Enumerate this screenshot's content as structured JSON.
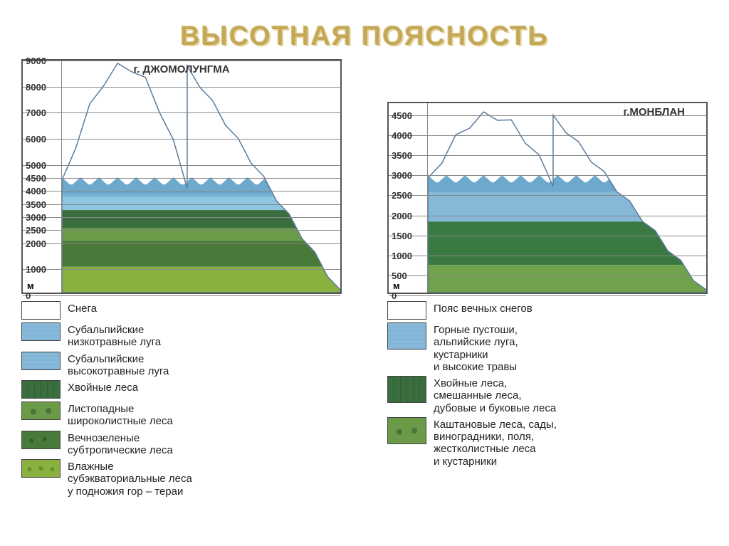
{
  "title": "ВЫСОТНАЯ ПОЯСНОСТЬ",
  "title_color": "#c4a85a",
  "chart_left": {
    "title": "г. ДЖОМОЛУНГМА",
    "y_max": 9000,
    "y_ticks": [
      9000,
      8000,
      7000,
      6000,
      5000,
      4500,
      4000,
      3500,
      3000,
      2500,
      2000,
      1000,
      0
    ],
    "y_unit": "м",
    "peak_height": 8800,
    "zones": [
      {
        "from": 4200,
        "to": 8800,
        "color": "#ffffff"
      },
      {
        "from": 3700,
        "to": 4200,
        "color": "#7db4d6"
      },
      {
        "from": 3200,
        "to": 3700,
        "color": "#8fc7e2"
      },
      {
        "from": 2500,
        "to": 3200,
        "color": "#3a6e3e"
      },
      {
        "from": 2000,
        "to": 2500,
        "color": "#6b9a48"
      },
      {
        "from": 1000,
        "to": 2000,
        "color": "#4a7a3a"
      },
      {
        "from": 0,
        "to": 1000,
        "color": "#8ab040"
      }
    ]
  },
  "chart_right": {
    "title": "г.МОНБЛАН",
    "y_max": 4800,
    "y_ticks": [
      4500,
      4000,
      3500,
      3000,
      2500,
      2000,
      1500,
      1000,
      500,
      0
    ],
    "y_unit": "м",
    "peak_height": 4500,
    "zones": [
      {
        "from": 2800,
        "to": 4500,
        "color": "#ffffff"
      },
      {
        "from": 1800,
        "to": 2800,
        "color": "#86b8d8"
      },
      {
        "from": 700,
        "to": 1800,
        "color": "#3a7a42"
      },
      {
        "from": 0,
        "to": 700,
        "color": "#6fa24a"
      }
    ]
  },
  "legend_left": [
    {
      "label": "Снега",
      "color": "#ffffff",
      "tex": ""
    },
    {
      "label": "Субальпийские\nнизкотравные луга",
      "color": "#7db4d6",
      "tex": "alpine"
    },
    {
      "label": "Субальпийские\nвысокотравные луга",
      "color": "#8fc7e2",
      "tex": "alpine"
    },
    {
      "label": "Хвойные леса",
      "color": "#3a6e3e",
      "tex": "conifer"
    },
    {
      "label": "Листопадные\nшироколистные леса",
      "color": "#6b9a48",
      "tex": "broadleaf"
    },
    {
      "label": "Вечнозеленые\nсубтропические леса",
      "color": "#4a7a3a",
      "tex": "subtrop"
    },
    {
      "label": "Влажные\nсубэкваториальные леса\nу подножия гор – тераи",
      "color": "#8ab040",
      "tex": "subeq"
    }
  ],
  "legend_right": [
    {
      "label": "Пояс вечных снегов",
      "color": "#ffffff",
      "tex": ""
    },
    {
      "label": "Горные пустоши,\nальпийские луга,\nкустарники\nи высокие травы",
      "color": "#86b8d8",
      "tex": "alpine",
      "tall": true
    },
    {
      "label": "Хвойные леса,\nсмешанные леса,\nдубовые и буковые леса",
      "color": "#3a7a42",
      "tex": "conifer",
      "tall": true
    },
    {
      "label": "Каштановые леса, сады,\nвиноградники, поля,\nжестколистные леса\nи кустарники",
      "color": "#6fa24a",
      "tex": "broadleaf",
      "tall": true
    }
  ]
}
